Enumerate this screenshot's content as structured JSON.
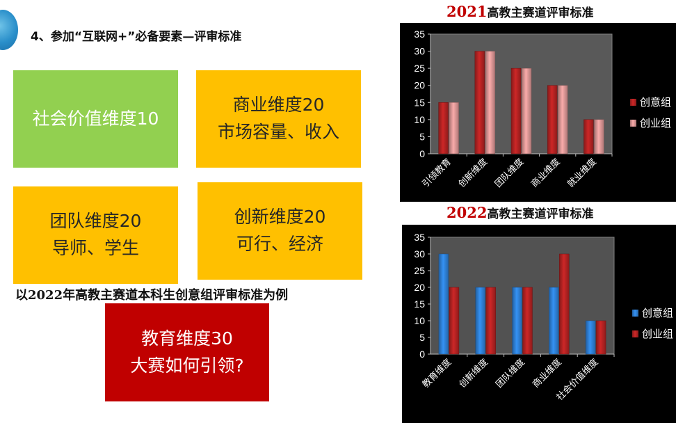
{
  "slide": {
    "title": "4、参加“互联网+”必备要素—评审标准",
    "caption": "以2022年高教主赛道本科生创意组评审标准为例"
  },
  "boxes": {
    "social": {
      "line1": "社会价值维度10"
    },
    "business": {
      "line1": "商业维度20",
      "line2": "市场容量、收入"
    },
    "team": {
      "line1": "团队维度20",
      "line2": "导师、学生"
    },
    "innovation": {
      "line1": "创新维度20",
      "line2": "可行、经济"
    },
    "education": {
      "line1": "教育维度30",
      "line2": "大赛如何引领?"
    }
  },
  "colors": {
    "green_box": "#92d050",
    "orange_box": "#ffc000",
    "red_box": "#c00000",
    "chart_background": "#000000",
    "bar_dark_red": "#b22222",
    "bar_light_red": "#d99594",
    "bar_blue": "#2e7fd4"
  },
  "chart_data": [
    {
      "type": "bar",
      "title_year": "2021",
      "title_text": "高教主赛道评审标准",
      "categories": [
        "引领教育",
        "创新维度",
        "团队维度",
        "商业维度",
        "就业维度"
      ],
      "series": [
        {
          "name": "创意组",
          "values": [
            15,
            30,
            25,
            20,
            10
          ],
          "color": "#b22222"
        },
        {
          "name": "创业组",
          "values": [
            15,
            30,
            25,
            20,
            10
          ],
          "color": "#d99594"
        }
      ],
      "yticks": [
        "0",
        "5",
        "10",
        "15",
        "20",
        "25",
        "30",
        "35"
      ],
      "ylim": [
        0,
        35
      ],
      "grid": false,
      "legend": "right"
    },
    {
      "type": "bar",
      "title_year": "2022",
      "title_text": "高教主赛道评审标准",
      "categories": [
        "教育维度",
        "创新维度",
        "团队维度",
        "商业维度",
        "社会价值维度"
      ],
      "series": [
        {
          "name": "创意组",
          "values": [
            30,
            20,
            20,
            20,
            10
          ],
          "color": "#2e7fd4"
        },
        {
          "name": "创业组",
          "values": [
            20,
            20,
            20,
            30,
            10
          ],
          "color": "#b22222"
        }
      ],
      "yticks": [
        "0",
        "5",
        "10",
        "15",
        "20",
        "25",
        "30",
        "35"
      ],
      "ylim": [
        0,
        35
      ],
      "grid": false,
      "legend": "right"
    }
  ]
}
